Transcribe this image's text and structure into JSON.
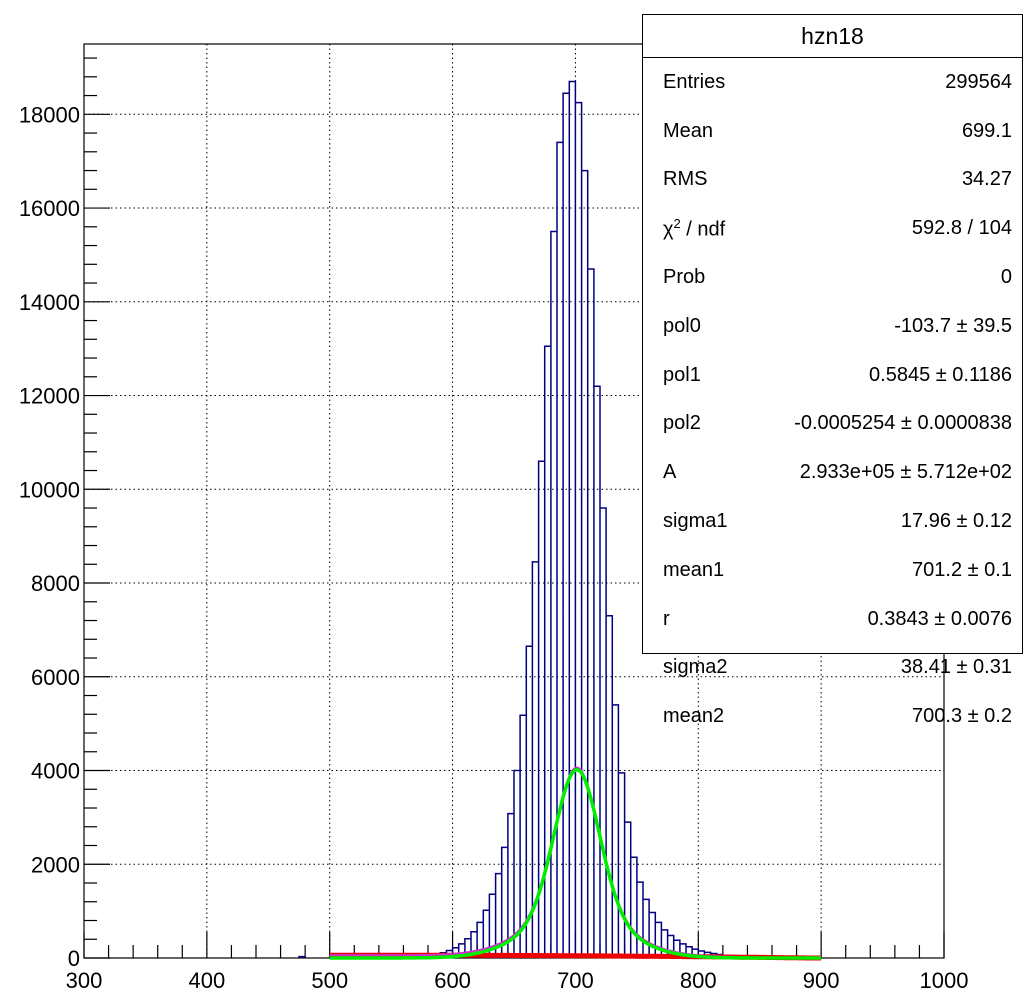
{
  "chart_data": {
    "type": "histogram",
    "title": "",
    "xlabel": "",
    "ylabel": "",
    "xlim": [
      300,
      1000
    ],
    "ylim": [
      0,
      19500
    ],
    "x_ticks": [
      300,
      400,
      500,
      600,
      700,
      800,
      900,
      1000
    ],
    "y_ticks": [
      0,
      2000,
      4000,
      6000,
      8000,
      10000,
      12000,
      14000,
      16000,
      18000
    ],
    "grid": true,
    "bin_width": 5,
    "histogram": {
      "name": "hzn18",
      "color": "#000080",
      "bin_centers": [
        477.5,
        502.5,
        582.5,
        587.5,
        592.5,
        597.5,
        602.5,
        607.5,
        612.5,
        617.5,
        622.5,
        627.5,
        632.5,
        637.5,
        642.5,
        647.5,
        652.5,
        657.5,
        662.5,
        667.5,
        672.5,
        677.5,
        682.5,
        687.5,
        692.5,
        697.5,
        702.5,
        707.5,
        712.5,
        717.5,
        722.5,
        727.5,
        732.5,
        737.5,
        742.5,
        747.5,
        752.5,
        757.5,
        762.5,
        767.5,
        772.5,
        777.5,
        782.5,
        787.5,
        792.5,
        797.5,
        802.5,
        807.5,
        812.5,
        817.5,
        822.5,
        827.5,
        832.5,
        837.5,
        842.5,
        847.5,
        852.5,
        857.5,
        862.5,
        867.5,
        872.5,
        877.5,
        882.5,
        887.5,
        892.5,
        897.5
      ],
      "counts": [
        30,
        25,
        40,
        70,
        110,
        160,
        220,
        300,
        410,
        560,
        760,
        1020,
        1360,
        1800,
        2360,
        3080,
        4000,
        5180,
        6650,
        8450,
        10600,
        13050,
        15500,
        17400,
        18450,
        18700,
        18250,
        16800,
        14700,
        12200,
        9600,
        7300,
        5400,
        3950,
        2900,
        2150,
        1620,
        1250,
        970,
        760,
        600,
        480,
        380,
        300,
        240,
        190,
        150,
        120,
        95,
        75,
        60,
        48,
        40,
        33,
        27,
        22,
        18,
        15,
        12,
        10,
        8,
        7,
        6,
        5,
        4,
        3
      ]
    },
    "fit": {
      "range": [
        500,
        900
      ],
      "pol0": -103.7,
      "pol1": 0.5845,
      "pol2": -0.0005254,
      "A": 293300,
      "sigma1": 17.96,
      "mean1": 701.2,
      "r": 0.3843,
      "sigma2": 38.41,
      "mean2": 700.3,
      "total_color": "#cc33cc",
      "signal_color": "#00ee00",
      "background_color": "#ee0000"
    }
  },
  "stats_box": {
    "title": "hzn18",
    "rows": [
      {
        "key": "Entries",
        "value": "299564"
      },
      {
        "key": "Mean",
        "value": "699.1"
      },
      {
        "key": "RMS",
        "value": "34.27"
      },
      {
        "key_main": "χ",
        "key_sup": "2",
        "key_tail": " / ndf",
        "value": "592.8 / 104"
      },
      {
        "key": "Prob",
        "value": "0"
      },
      {
        "key": "pol0",
        "value": "-103.7 ± 39.5"
      },
      {
        "key": "pol1",
        "value": "0.5845 ± 0.1186"
      },
      {
        "key": "pol2",
        "value": "-0.0005254 ± 0.0000838"
      },
      {
        "key": "A",
        "value": "2.933e+05 ± 5.712e+02"
      },
      {
        "key": "sigma1",
        "value": "17.96 ± 0.12"
      },
      {
        "key": "mean1",
        "value": "701.2 ± 0.1"
      },
      {
        "key": "r",
        "value": "0.3843 ± 0.0076"
      },
      {
        "key": "sigma2",
        "value": "38.41 ± 0.31"
      },
      {
        "key": "mean2",
        "value": "700.3 ± 0.2"
      }
    ]
  }
}
